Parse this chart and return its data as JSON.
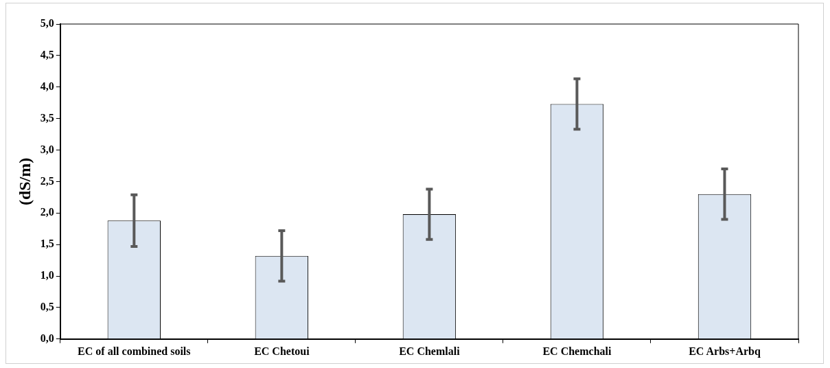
{
  "chart_data": {
    "type": "bar",
    "ylabel": "(dS/m)",
    "categories": [
      "EC of all combined soils",
      "EC Chetoui",
      "EC Chemlali",
      "EC Chemchali",
      "EC Arbs+Arbq"
    ],
    "values": [
      1.88,
      1.32,
      1.98,
      3.73,
      2.3
    ],
    "errors": [
      0.41,
      0.4,
      0.4,
      0.4,
      0.4
    ],
    "color": "#dce6f2",
    "ylim": [
      0,
      5
    ],
    "yticks": [
      {
        "value": 0,
        "label": "0,0"
      },
      {
        "value": 0.5,
        "label": "0,5"
      },
      {
        "value": 1,
        "label": "1,0"
      },
      {
        "value": 1.5,
        "label": "1,5"
      },
      {
        "value": 2,
        "label": "2,0"
      },
      {
        "value": 2.5,
        "label": "2,5"
      },
      {
        "value": 3,
        "label": "3,0"
      },
      {
        "value": 3.5,
        "label": "3,5"
      },
      {
        "value": 4,
        "label": "4,0"
      },
      {
        "value": 4.5,
        "label": "4,5"
      },
      {
        "value": 5,
        "label": "5,0"
      }
    ],
    "grid": false,
    "legend": false
  }
}
